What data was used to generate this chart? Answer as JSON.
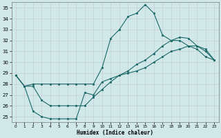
{
  "title": "",
  "xlabel": "Humidex (Indice chaleur)",
  "ylabel": "",
  "bg_color": "#d0e8e8",
  "grid_color": "#b8d4d4",
  "line_color": "#1a6868",
  "xlim": [
    -0.5,
    23.5
  ],
  "ylim": [
    24.5,
    35.5
  ],
  "yticks": [
    25,
    26,
    27,
    28,
    29,
    30,
    31,
    32,
    33,
    34,
    35
  ],
  "xticks": [
    0,
    1,
    2,
    3,
    4,
    5,
    6,
    7,
    8,
    9,
    10,
    11,
    12,
    13,
    14,
    15,
    16,
    17,
    18,
    19,
    20,
    21,
    22,
    23
  ],
  "series1_x": [
    0,
    1,
    2,
    3,
    4,
    5,
    6,
    7,
    8,
    9,
    10,
    11,
    12,
    13,
    14,
    15,
    16,
    17,
    18,
    19,
    20,
    21,
    22,
    23
  ],
  "series1_y": [
    28.8,
    27.8,
    28.0,
    28.0,
    28.0,
    28.0,
    28.0,
    28.0,
    28.0,
    28.0,
    29.5,
    32.2,
    33.0,
    34.2,
    34.5,
    35.3,
    34.5,
    32.5,
    32.0,
    32.0,
    31.5,
    31.2,
    30.5,
    30.2
  ],
  "series2_x": [
    0,
    1,
    2,
    3,
    4,
    5,
    6,
    7,
    8,
    9,
    10,
    11,
    12,
    13,
    14,
    15,
    16,
    17,
    18,
    19,
    20,
    21,
    22,
    23
  ],
  "series2_y": [
    28.8,
    27.8,
    27.8,
    26.5,
    26.0,
    26.0,
    26.0,
    26.0,
    26.0,
    26.8,
    27.5,
    28.2,
    28.8,
    29.2,
    29.8,
    30.2,
    30.8,
    31.5,
    32.0,
    32.3,
    32.2,
    31.5,
    31.0,
    30.2
  ],
  "series3_x": [
    0,
    1,
    2,
    3,
    4,
    5,
    6,
    7,
    8,
    9,
    10,
    11,
    12,
    13,
    14,
    15,
    16,
    17,
    18,
    19,
    20,
    21,
    22,
    23
  ],
  "series3_y": [
    28.8,
    27.8,
    25.5,
    25.0,
    24.8,
    24.8,
    24.8,
    24.8,
    27.2,
    27.0,
    28.2,
    28.5,
    28.8,
    29.0,
    29.2,
    29.5,
    30.0,
    30.5,
    31.0,
    31.2,
    31.5,
    31.5,
    31.2,
    30.2
  ]
}
